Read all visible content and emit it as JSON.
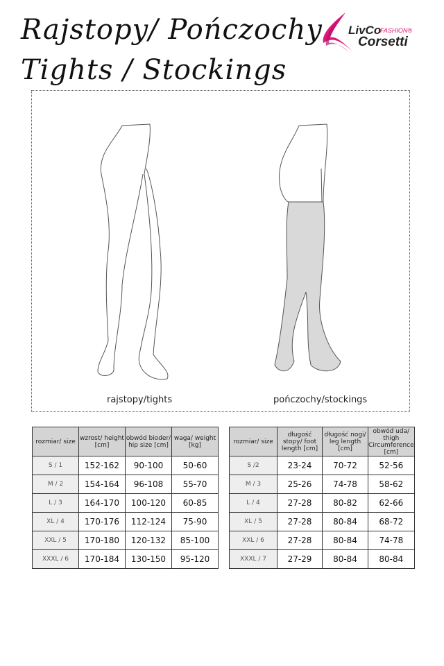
{
  "header": {
    "title_line1": "Rajstopy/ Pończochy",
    "title_line2": "Tights / Stockings"
  },
  "logo": {
    "brand": "LivCo",
    "sub": "FASHION®",
    "brand2": "Corsetti",
    "accent": "#e0177a"
  },
  "figures": {
    "left_caption": "rajstopy/tights",
    "right_caption": "pończochy/stockings"
  },
  "table_tights": {
    "headers": [
      "rozmiar/ size",
      "wzrost/ height [cm]",
      "obwód bioder/ hip size [cm]",
      "waga/ weight [kg]"
    ],
    "rows": [
      [
        "S / 1",
        "152-162",
        "90-100",
        "50-60"
      ],
      [
        "M / 2",
        "154-164",
        "96-108",
        "55-70"
      ],
      [
        "L / 3",
        "164-170",
        "100-120",
        "60-85"
      ],
      [
        "XL / 4",
        "170-176",
        "112-124",
        "75-90"
      ],
      [
        "XXL / 5",
        "170-180",
        "120-132",
        "85-100"
      ],
      [
        "XXXL / 6",
        "170-184",
        "130-150",
        "95-120"
      ]
    ]
  },
  "table_stockings": {
    "headers": [
      "rozmiar/ size",
      "długość stopy/ foot length [cm]",
      "długość nogi/ leg length [cm]",
      "obwód uda/ thigh Circumference [cm]"
    ],
    "rows": [
      [
        "S /2",
        "23-24",
        "70-72",
        "52-56"
      ],
      [
        "M / 3",
        "25-26",
        "74-78",
        "58-62"
      ],
      [
        "L / 4",
        "27-28",
        "80-82",
        "62-66"
      ],
      [
        "XL / 5",
        "27-28",
        "80-84",
        "68-72"
      ],
      [
        "XXL / 6",
        "27-28",
        "80-84",
        "74-78"
      ],
      [
        "XXXL / 7",
        "27-29",
        "80-84",
        "80-84"
      ]
    ]
  }
}
